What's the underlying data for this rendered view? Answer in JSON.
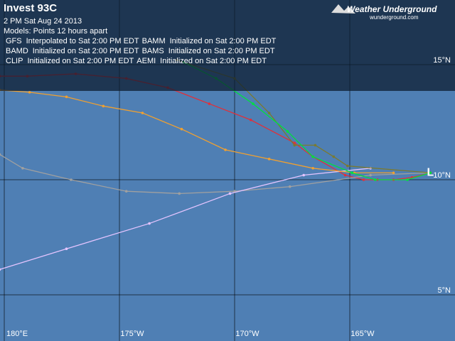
{
  "title": "Invest 93C",
  "date": "2 PM  Sat Aug 24 2013",
  "models_note": "Models:  Points 12 hours apart",
  "logo": {
    "name": "Weather Underground",
    "url": "wunderground.com"
  },
  "storm_symbol": "L",
  "storm_position": [
    -161.5,
    10.3
  ],
  "latitudes": [
    {
      "value": 15,
      "label": "15°N"
    },
    {
      "value": 10,
      "label": "10°N"
    },
    {
      "value": 5,
      "label": "5°N"
    }
  ],
  "longitudes": [
    {
      "value": -180,
      "label": "180°E"
    },
    {
      "value": -175,
      "label": "175°W"
    },
    {
      "value": -170,
      "label": "170°W"
    },
    {
      "value": -165,
      "label": "165°W"
    }
  ],
  "models": [
    {
      "name": "GFS",
      "color": "#e0303a",
      "note": "Interpolated to Sat 2:00 PM EDT",
      "track": [
        [
          -161.5,
          10.3
        ],
        [
          -162.3,
          10.1
        ],
        [
          -163.1,
          10.0
        ],
        [
          -163.8,
          10.0
        ],
        [
          -164.4,
          10.0
        ],
        [
          -165.2,
          10.2
        ],
        [
          -166.6,
          11.0
        ],
        [
          -167.4,
          11.6
        ],
        [
          -169.3,
          12.6
        ],
        [
          -171.1,
          13.3
        ],
        [
          -172.9,
          14.0
        ],
        [
          -174.7,
          14.4
        ],
        [
          -176.9,
          14.6
        ],
        [
          -179.0,
          14.5
        ],
        [
          -180.2,
          14.5
        ]
      ]
    },
    {
      "name": "BAMM",
      "color": "#a0a0a0",
      "note": "Initialized on Sat 2:00 PM EDT",
      "track": [
        [
          -161.5,
          10.3
        ],
        [
          -164.1,
          10.2
        ],
        [
          -167.6,
          9.7
        ],
        [
          -170.0,
          9.5
        ],
        [
          -172.4,
          9.4
        ],
        [
          -174.7,
          9.5
        ],
        [
          -177.1,
          10.0
        ],
        [
          -179.2,
          10.5
        ],
        [
          -180.2,
          11.1
        ]
      ]
    },
    {
      "name": "BAMD",
      "color": "#e4c4ff",
      "note": "Initialized on Sat 2:00 PM EDT",
      "track": [
        [
          -164.1,
          10.5
        ],
        [
          -167.0,
          10.2
        ],
        [
          -170.2,
          9.4
        ],
        [
          -173.7,
          8.1
        ],
        [
          -177.3,
          7.0
        ],
        [
          -180.2,
          6.1
        ]
      ]
    },
    {
      "name": "BAMS",
      "color": "#f0a030",
      "note": "Initialized on Sat 2:00 PM EDT",
      "track": [
        [
          -163.1,
          10.3
        ],
        [
          -164.8,
          10.3
        ],
        [
          -166.6,
          10.5
        ],
        [
          -168.5,
          10.9
        ],
        [
          -170.4,
          11.3
        ],
        [
          -172.3,
          12.2
        ],
        [
          -174.0,
          12.9
        ],
        [
          -175.7,
          13.2
        ],
        [
          -177.3,
          13.6
        ],
        [
          -178.9,
          13.8
        ],
        [
          -180.2,
          13.9
        ]
      ]
    },
    {
      "name": "CLIP",
      "color": "#7a7a30",
      "note": "Initialized on Sat 2:00 PM EDT",
      "track": [
        [
          -161.5,
          10.3
        ],
        [
          -165.1,
          10.6
        ],
        [
          -165.7,
          11.0
        ],
        [
          -166.5,
          11.5
        ],
        [
          -167.4,
          11.5
        ],
        [
          -168.5,
          12.9
        ],
        [
          -170.0,
          14.4
        ],
        [
          -172.5,
          15.2
        ]
      ]
    },
    {
      "name": "AEMI",
      "color": "#00e040",
      "note": "Initialized on Sat 2:00 PM EDT",
      "track": [
        [
          -161.5,
          10.3
        ],
        [
          -162.5,
          10.0
        ],
        [
          -163.9,
          10.0
        ],
        [
          -164.9,
          10.3
        ],
        [
          -166.6,
          11.0
        ],
        [
          -167.7,
          12.1
        ],
        [
          -169.2,
          13.3
        ],
        [
          -170.8,
          14.4
        ],
        [
          -172.2,
          15.1
        ]
      ]
    }
  ]
}
